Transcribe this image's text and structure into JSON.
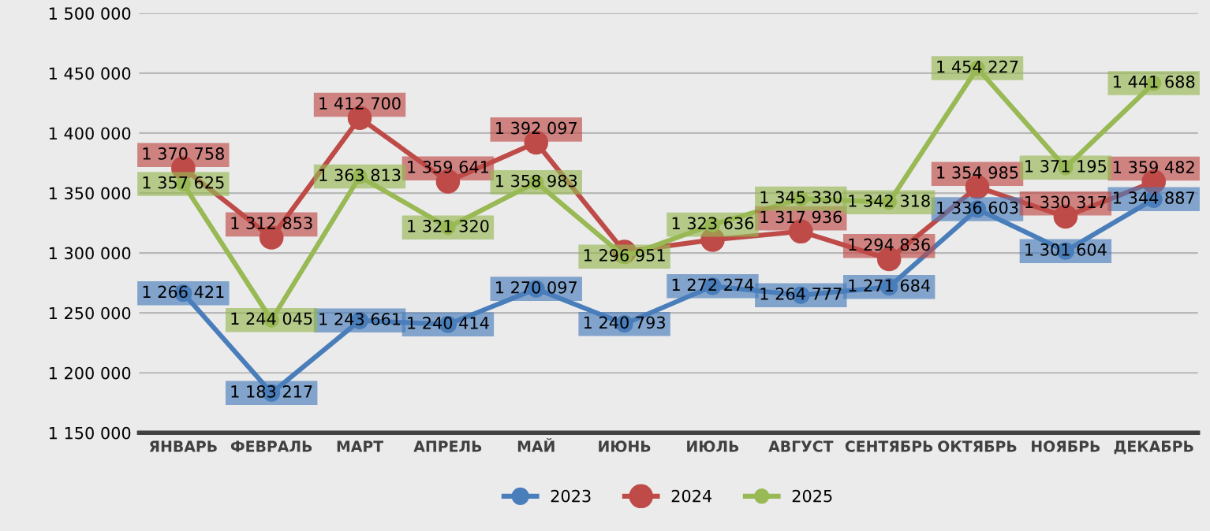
{
  "chart_data": {
    "type": "line",
    "categories": [
      "ЯНВАРЬ",
      "ФЕВРАЛЬ",
      "МАРТ",
      "АПРЕЛЬ",
      "МАЙ",
      "ИЮНЬ",
      "ИЮЛЬ",
      "АВГУСТ",
      "СЕНТЯБРЬ",
      "ОКТЯБРЬ",
      "НОЯБРЬ",
      "ДЕКАБРЬ"
    ],
    "series": [
      {
        "name": "2023",
        "color": "#4a7ebb",
        "values": [
          1266421,
          1183217,
          1243661,
          1240414,
          1270097,
          1240793,
          1272274,
          1264777,
          1271684,
          1336603,
          1301604,
          1344887
        ],
        "value_labels": [
          "1 266 421",
          "1 183 217",
          "1 243 661",
          "1 240 414",
          "1 270 097",
          "1 240 793",
          "1 272 274",
          "1 264 777",
          "1 271 684",
          "1 336 603",
          "1 301 604",
          "1 344 887"
        ]
      },
      {
        "name": "2024",
        "color": "#be4b48",
        "values": [
          1370758,
          1312853,
          1412700,
          1359641,
          1392097,
          1301000,
          1311000,
          1317936,
          1294836,
          1354985,
          1330317,
          1359482
        ],
        "value_labels": [
          "1 370 758",
          "1 312 853",
          "1 412 700",
          "1 359 641",
          "1 392 097",
          null,
          null,
          "1 317 936",
          "1 294 836",
          "1 354 985",
          "1 330 317",
          "1 359 482"
        ]
      },
      {
        "name": "2025",
        "color": "#98b954",
        "values": [
          1357625,
          1244045,
          1363813,
          1321320,
          1358983,
          1296951,
          1323636,
          1345330,
          1342318,
          1454227,
          1371195,
          1441688
        ],
        "value_labels": [
          "1 357 625",
          "1 244 045",
          "1 363 813",
          "1 321 320",
          "1 358 983",
          "1 296 951",
          "1 323 636",
          "1 345 330",
          "1 342 318",
          "1 454 227",
          "1 371 195",
          "1 441 688"
        ]
      }
    ],
    "ylim": [
      1150000,
      1500000
    ],
    "yticks": [
      {
        "value": 1150000,
        "label": "1 150 000"
      },
      {
        "value": 1200000,
        "label": "1 200 000"
      },
      {
        "value": 1250000,
        "label": "1 250 000"
      },
      {
        "value": 1300000,
        "label": "1 300 000"
      },
      {
        "value": 1350000,
        "label": "1 350 000"
      },
      {
        "value": 1400000,
        "label": "1 400 000"
      },
      {
        "value": 1450000,
        "label": "1 450 000"
      },
      {
        "value": 1500000,
        "label": "1 500 000"
      }
    ],
    "grid": "y",
    "legend": "bottom",
    "marker": "circle",
    "line_style": "solid"
  }
}
